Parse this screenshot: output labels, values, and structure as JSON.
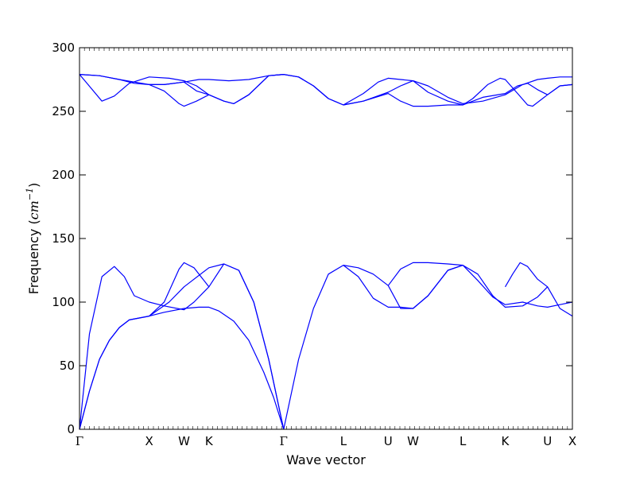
{
  "chart_data": {
    "type": "line",
    "xlabel": "Wave vector",
    "ylabel": {
      "text": "Frequency (",
      "unit": "cm",
      "exponent": "−1",
      "close": ")"
    },
    "ylim": [
      0,
      300
    ],
    "yticks": [
      0,
      50,
      100,
      150,
      200,
      250,
      300
    ],
    "x_range": [
      0,
      9.9
    ],
    "high_symmetry_points": [
      {
        "label": "Γ",
        "x": 0
      },
      {
        "label": "X",
        "x": 1.4
      },
      {
        "label": "W",
        "x": 2.1
      },
      {
        "label": "K",
        "x": 2.6
      },
      {
        "label": "Γ",
        "x": 4.1
      },
      {
        "label": "L",
        "x": 5.3
      },
      {
        "label": "U",
        "x": 6.2
      },
      {
        "label": "W",
        "x": 6.7
      },
      {
        "label": "L",
        "x": 7.7
      },
      {
        "label": "K",
        "x": 8.55
      },
      {
        "label": "U",
        "x": 9.4
      },
      {
        "label": "X",
        "x": 9.9
      }
    ],
    "line_color": "#0000ff",
    "series": [
      {
        "points": [
          [
            0,
            0
          ],
          [
            0.2,
            30
          ],
          [
            0.4,
            55
          ],
          [
            0.6,
            70
          ],
          [
            0.8,
            80
          ],
          [
            1.0,
            86
          ],
          [
            1.4,
            89
          ],
          [
            1.7,
            92
          ],
          [
            2.1,
            95
          ],
          [
            2.4,
            96
          ],
          [
            2.6,
            96
          ],
          [
            2.8,
            93
          ],
          [
            3.1,
            85
          ],
          [
            3.4,
            70
          ],
          [
            3.7,
            45
          ],
          [
            3.9,
            25
          ],
          [
            4.1,
            0
          ]
        ]
      },
      {
        "points": [
          [
            0,
            0
          ],
          [
            0.2,
            30
          ],
          [
            0.4,
            55
          ],
          [
            0.6,
            70
          ],
          [
            0.8,
            80
          ],
          [
            1.0,
            86
          ],
          [
            1.4,
            89
          ],
          [
            1.8,
            100
          ],
          [
            2.1,
            112
          ],
          [
            2.6,
            127
          ],
          [
            2.9,
            130
          ],
          [
            3.2,
            125
          ],
          [
            3.5,
            100
          ],
          [
            3.8,
            55
          ],
          [
            4.1,
            0
          ]
        ]
      },
      {
        "points": [
          [
            0,
            0
          ],
          [
            0.2,
            75
          ],
          [
            0.45,
            120
          ],
          [
            0.7,
            128
          ],
          [
            0.9,
            120
          ],
          [
            1.1,
            105
          ],
          [
            1.4,
            100
          ],
          [
            1.7,
            97
          ],
          [
            2.1,
            94
          ],
          [
            2.3,
            100
          ],
          [
            2.6,
            112
          ],
          [
            2.9,
            130
          ],
          [
            3.2,
            125
          ],
          [
            3.5,
            100
          ],
          [
            3.8,
            55
          ],
          [
            4.1,
            0
          ]
        ]
      },
      {
        "points": [
          [
            1.4,
            89
          ],
          [
            1.7,
            100
          ],
          [
            2.0,
            126
          ],
          [
            2.1,
            131
          ],
          [
            2.3,
            127
          ],
          [
            2.6,
            112
          ]
        ]
      },
      {
        "points": [
          [
            4.1,
            0
          ],
          [
            4.4,
            55
          ],
          [
            4.7,
            95
          ],
          [
            5.0,
            122
          ],
          [
            5.3,
            129
          ],
          [
            5.6,
            127
          ],
          [
            5.9,
            122
          ],
          [
            6.2,
            113
          ],
          [
            6.45,
            95
          ],
          [
            6.7,
            95
          ],
          [
            7.0,
            105
          ],
          [
            7.4,
            125
          ],
          [
            7.7,
            129
          ],
          [
            8.0,
            122
          ],
          [
            8.3,
            105
          ],
          [
            8.55,
            96
          ],
          [
            8.9,
            97
          ],
          [
            9.2,
            104
          ],
          [
            9.4,
            112
          ],
          [
            9.65,
            95
          ],
          [
            9.9,
            89
          ]
        ]
      },
      {
        "points": [
          [
            5.3,
            129
          ],
          [
            5.6,
            120
          ],
          [
            5.9,
            103
          ],
          [
            6.2,
            96
          ],
          [
            6.45,
            96
          ],
          [
            6.7,
            95
          ],
          [
            7.0,
            105
          ],
          [
            7.4,
            125
          ],
          [
            7.7,
            129
          ],
          [
            8.0,
            117
          ],
          [
            8.3,
            104
          ],
          [
            8.55,
            98
          ],
          [
            8.9,
            100
          ],
          [
            9.2,
            97
          ],
          [
            9.4,
            96
          ],
          [
            9.65,
            98
          ],
          [
            9.9,
            100
          ]
        ]
      },
      {
        "points": [
          [
            6.2,
            113
          ],
          [
            6.45,
            126
          ],
          [
            6.7,
            131
          ],
          [
            7.0,
            131
          ],
          [
            7.4,
            130
          ],
          [
            7.7,
            129
          ]
        ]
      },
      {
        "points": [
          [
            8.55,
            112
          ],
          [
            8.7,
            122
          ],
          [
            8.85,
            131
          ],
          [
            9.0,
            128
          ],
          [
            9.2,
            118
          ],
          [
            9.4,
            112
          ]
        ]
      },
      {
        "points": [
          [
            0,
            279
          ],
          [
            0.4,
            278
          ],
          [
            0.8,
            275
          ],
          [
            1.1,
            272
          ],
          [
            1.4,
            271
          ],
          [
            1.7,
            271
          ],
          [
            2.1,
            273
          ],
          [
            2.4,
            275
          ],
          [
            2.6,
            275
          ],
          [
            3.0,
            274
          ],
          [
            3.4,
            275
          ],
          [
            3.8,
            278
          ],
          [
            4.1,
            279
          ],
          [
            4.4,
            277
          ],
          [
            4.7,
            270
          ],
          [
            5.0,
            260
          ],
          [
            5.3,
            255
          ],
          [
            5.7,
            258
          ],
          [
            6.2,
            265
          ],
          [
            6.45,
            270
          ],
          [
            6.7,
            274
          ],
          [
            7.0,
            270
          ],
          [
            7.4,
            261
          ],
          [
            7.7,
            256
          ],
          [
            8.1,
            258
          ],
          [
            8.55,
            263
          ],
          [
            8.9,
            271
          ],
          [
            9.2,
            275
          ],
          [
            9.4,
            276
          ],
          [
            9.65,
            277
          ],
          [
            9.9,
            277
          ]
        ]
      },
      {
        "points": [
          [
            0,
            279
          ],
          [
            0.4,
            278
          ],
          [
            0.8,
            275
          ],
          [
            1.1,
            273
          ],
          [
            1.4,
            271
          ],
          [
            1.7,
            271
          ],
          [
            2.1,
            273
          ],
          [
            2.35,
            266
          ],
          [
            2.6,
            263
          ],
          [
            2.9,
            258
          ],
          [
            3.1,
            256
          ],
          [
            3.4,
            263
          ],
          [
            3.8,
            278
          ],
          [
            4.1,
            279
          ],
          [
            4.4,
            277
          ],
          [
            4.7,
            270
          ],
          [
            5.0,
            260
          ],
          [
            5.3,
            255
          ],
          [
            5.7,
            258
          ],
          [
            6.2,
            264
          ],
          [
            6.45,
            258
          ],
          [
            6.7,
            254
          ],
          [
            7.0,
            254
          ],
          [
            7.4,
            255
          ],
          [
            7.7,
            255
          ],
          [
            8.1,
            261
          ],
          [
            8.55,
            264
          ],
          [
            8.8,
            270
          ],
          [
            9.0,
            272
          ],
          [
            9.2,
            267
          ],
          [
            9.4,
            263
          ],
          [
            9.65,
            270
          ],
          [
            9.9,
            271
          ]
        ]
      },
      {
        "points": [
          [
            0,
            279
          ],
          [
            0.15,
            272
          ],
          [
            0.45,
            258
          ],
          [
            0.7,
            262
          ],
          [
            1.0,
            272
          ],
          [
            1.4,
            277
          ],
          [
            1.8,
            276
          ],
          [
            2.1,
            274
          ],
          [
            2.35,
            270
          ],
          [
            2.6,
            263
          ],
          [
            2.9,
            258
          ],
          [
            3.1,
            256
          ],
          [
            3.4,
            263
          ],
          [
            3.8,
            278
          ],
          [
            4.1,
            279
          ]
        ]
      },
      {
        "points": [
          [
            1.4,
            271
          ],
          [
            1.7,
            266
          ],
          [
            2.0,
            256
          ],
          [
            2.1,
            254
          ],
          [
            2.35,
            258
          ],
          [
            2.6,
            263
          ]
        ]
      },
      {
        "points": [
          [
            5.3,
            255
          ],
          [
            5.7,
            264
          ],
          [
            6.0,
            273
          ],
          [
            6.2,
            276
          ],
          [
            6.45,
            275
          ],
          [
            6.7,
            274
          ],
          [
            7.0,
            265
          ],
          [
            7.4,
            258
          ],
          [
            7.7,
            255
          ],
          [
            7.9,
            260
          ],
          [
            8.2,
            271
          ],
          [
            8.45,
            276
          ],
          [
            8.55,
            275
          ],
          [
            8.8,
            264
          ],
          [
            9.0,
            255
          ],
          [
            9.1,
            254
          ],
          [
            9.3,
            260
          ],
          [
            9.4,
            263
          ],
          [
            9.65,
            270
          ],
          [
            9.9,
            271
          ]
        ]
      }
    ]
  }
}
